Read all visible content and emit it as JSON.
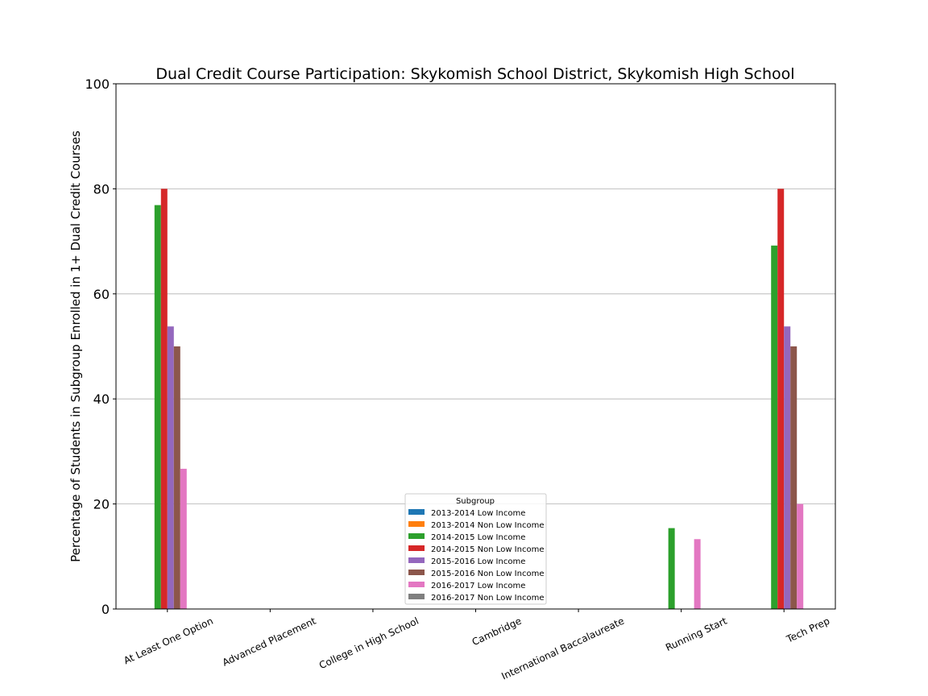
{
  "chart_data": {
    "type": "bar",
    "title": "Dual Credit Course Participation: Skykomish School District, Skykomish High School",
    "xlabel": "",
    "ylabel": "Percentage of Students in Subgroup Enrolled in 1+ Dual Credit Courses",
    "ylim": [
      0,
      100
    ],
    "yticks": [
      "0",
      "20",
      "40",
      "60",
      "80",
      "100"
    ],
    "grid": "horizontal",
    "legend_title": "Subgroup",
    "legend_position": "bottom-center",
    "categories": [
      "At Least One Option",
      "Advanced Placement",
      "College in High School",
      "Cambridge",
      "International Baccalaureate",
      "Running Start",
      "Tech Prep"
    ],
    "series": [
      {
        "name": "2013-2014 Low Income",
        "color": "#1f77b4",
        "values": [
          null,
          null,
          null,
          null,
          null,
          null,
          null
        ]
      },
      {
        "name": "2013-2014 Non Low Income",
        "color": "#ff7f0e",
        "values": [
          null,
          null,
          null,
          null,
          null,
          null,
          null
        ]
      },
      {
        "name": "2014-2015 Low Income",
        "color": "#2ca02c",
        "values": [
          76.9,
          0,
          0,
          0,
          0,
          15.4,
          69.2
        ]
      },
      {
        "name": "2014-2015 Non Low Income",
        "color": "#d62728",
        "values": [
          80,
          0,
          0,
          0,
          0,
          0,
          80
        ]
      },
      {
        "name": "2015-2016 Low Income",
        "color": "#9467bd",
        "values": [
          53.8,
          0,
          0,
          0,
          0,
          0,
          53.8
        ]
      },
      {
        "name": "2015-2016 Non Low Income",
        "color": "#8c564b",
        "values": [
          50,
          0,
          0,
          0,
          0,
          0,
          50
        ]
      },
      {
        "name": "2016-2017 Low Income",
        "color": "#e377c2",
        "values": [
          26.7,
          0,
          0,
          0,
          0,
          13.3,
          20
        ]
      },
      {
        "name": "2016-2017 Non Low Income",
        "color": "#7f7f7f",
        "values": [
          null,
          null,
          null,
          null,
          null,
          null,
          null
        ]
      }
    ]
  }
}
